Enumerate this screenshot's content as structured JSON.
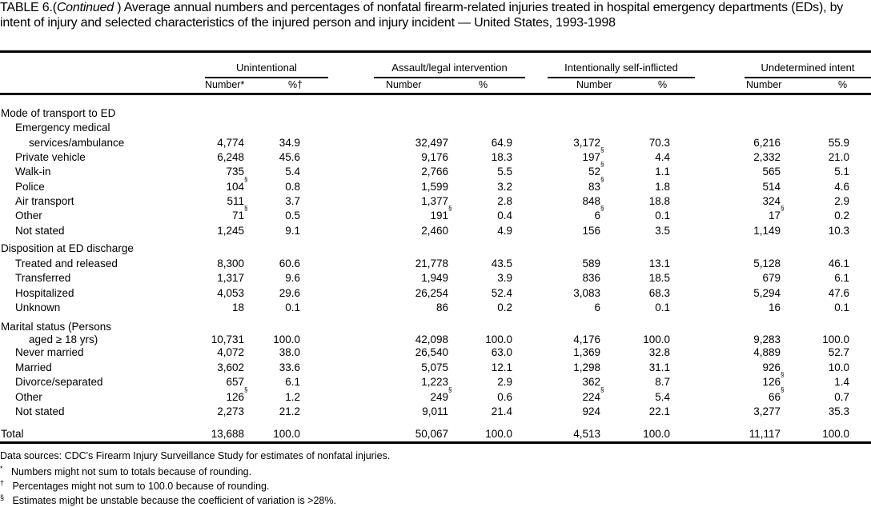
{
  "title": {
    "prefix": "TABLE 6.(",
    "continued": "Continued",
    "text": " ) Average annual numbers and percentages of nonfatal firearm-related injuries treated in hospital emergency departments (EDs), by intent of injury and selected characteristics of the injured person and injury incident — United States, 1993-1998"
  },
  "groups": [
    "Unintentional",
    "Assault/legal intervention",
    "Intentionally self-inflicted",
    "Undetermined intent"
  ],
  "subheaders": [
    "Number*",
    "%†",
    "Number",
    "%",
    "Number",
    "%",
    "Number",
    "%"
  ],
  "rows": [
    {
      "label": "Mode of transport to ED",
      "level": 0,
      "cells": []
    },
    {
      "label": "Emergency medical",
      "level": 1,
      "cells": []
    },
    {
      "label": "services/ambulance",
      "level": 2,
      "cells": [
        "4,774",
        "34.9",
        "32,497",
        "64.9",
        "3,172",
        "70.3",
        "6,216",
        "55.9"
      ]
    },
    {
      "label": "Private vehicle",
      "level": 1,
      "cells": [
        "6,248",
        "45.6",
        "9,176",
        "18.3",
        "197§",
        "4.4",
        "2,332",
        "21.0"
      ]
    },
    {
      "label": "Walk-in",
      "level": 1,
      "cells": [
        "735",
        "5.4",
        "2,766",
        "5.5",
        "52§",
        "1.1",
        "565",
        "5.1"
      ]
    },
    {
      "label": "Police",
      "level": 1,
      "cells": [
        "104§",
        "0.8",
        "1,599",
        "3.2",
        "83§",
        "1.8",
        "514",
        "4.6"
      ]
    },
    {
      "label": "Air transport",
      "level": 1,
      "cells": [
        "511",
        "3.7",
        "1,377",
        "2.8",
        "848",
        "18.8",
        "324",
        "2.9"
      ]
    },
    {
      "label": "Other",
      "level": 1,
      "cells": [
        "71§",
        "0.5",
        "191§",
        "0.4",
        "6§",
        "0.1",
        "17§",
        "0.2"
      ]
    },
    {
      "label": "Not stated",
      "level": 1,
      "cells": [
        "1,245",
        "9.1",
        "2,460",
        "4.9",
        "156",
        "3.5",
        "1,149",
        "10.3"
      ]
    },
    {
      "label": "Disposition at ED discharge",
      "level": 0,
      "cells": []
    },
    {
      "label": "Treated and released",
      "level": 1,
      "cells": [
        "8,300",
        "60.6",
        "21,778",
        "43.5",
        "589",
        "13.1",
        "5,128",
        "46.1"
      ]
    },
    {
      "label": "Transferred",
      "level": 1,
      "cells": [
        "1,317",
        "9.6",
        "1,949",
        "3.9",
        "836",
        "18.5",
        "679",
        "6.1"
      ]
    },
    {
      "label": "Hospitalized",
      "level": 1,
      "cells": [
        "4,053",
        "29.6",
        "26,254",
        "52.4",
        "3,083",
        "68.3",
        "5,294",
        "47.6"
      ]
    },
    {
      "label": "Unknown",
      "level": 1,
      "cells": [
        "18",
        "0.1",
        "86",
        "0.2",
        "6",
        "0.1",
        "16",
        "0.1"
      ]
    },
    {
      "label": "Marital status (Persons",
      "level": 0,
      "cells": []
    },
    {
      "label": "aged ≥ 18 yrs)",
      "level": 2,
      "cells": [
        "10,731",
        "100.0",
        "42,098",
        "100.0",
        "4,176",
        "100.0",
        "9,283",
        "100.0"
      ]
    },
    {
      "label": "Never married",
      "level": 1,
      "cells": [
        "4,072",
        "38.0",
        "26,540",
        "63.0",
        "1,369",
        "32.8",
        "4,889",
        "52.7"
      ]
    },
    {
      "label": "Married",
      "level": 1,
      "cells": [
        "3,602",
        "33.6",
        "5,075",
        "12.1",
        "1,298",
        "31.1",
        "926",
        "10.0"
      ]
    },
    {
      "label": "Divorce/separated",
      "level": 1,
      "cells": [
        "657",
        "6.1",
        "1,223",
        "2.9",
        "362",
        "8.7",
        "126§",
        "1.4"
      ]
    },
    {
      "label": "Other",
      "level": 1,
      "cells": [
        "126§",
        "1.2",
        "249§",
        "0.6",
        "224§",
        "5.4",
        "66§",
        "0.7"
      ]
    },
    {
      "label": "Not stated",
      "level": 1,
      "cells": [
        "2,273",
        "21.2",
        "9,011",
        "21.4",
        "924",
        "22.1",
        "3,277",
        "35.3"
      ]
    },
    {
      "label": "Total",
      "level": 0,
      "cells": [
        "13,688",
        "100.0",
        "50,067",
        "100.0",
        "4,513",
        "100.0",
        "11,117",
        "100.0"
      ]
    }
  ],
  "footnotes": {
    "source": "Data sources: CDC's Firearm Injury Surveillance Study for estimates of nonfatal injuries.",
    "notes": [
      {
        "mark": "*",
        "text": "Numbers might not sum to totals because of rounding."
      },
      {
        "mark": "†",
        "text": "Percentages might not sum to 100.0 because of rounding."
      },
      {
        "mark": "§",
        "text": "Estimates might be unstable because the coefficient of variation is >28%."
      }
    ]
  }
}
